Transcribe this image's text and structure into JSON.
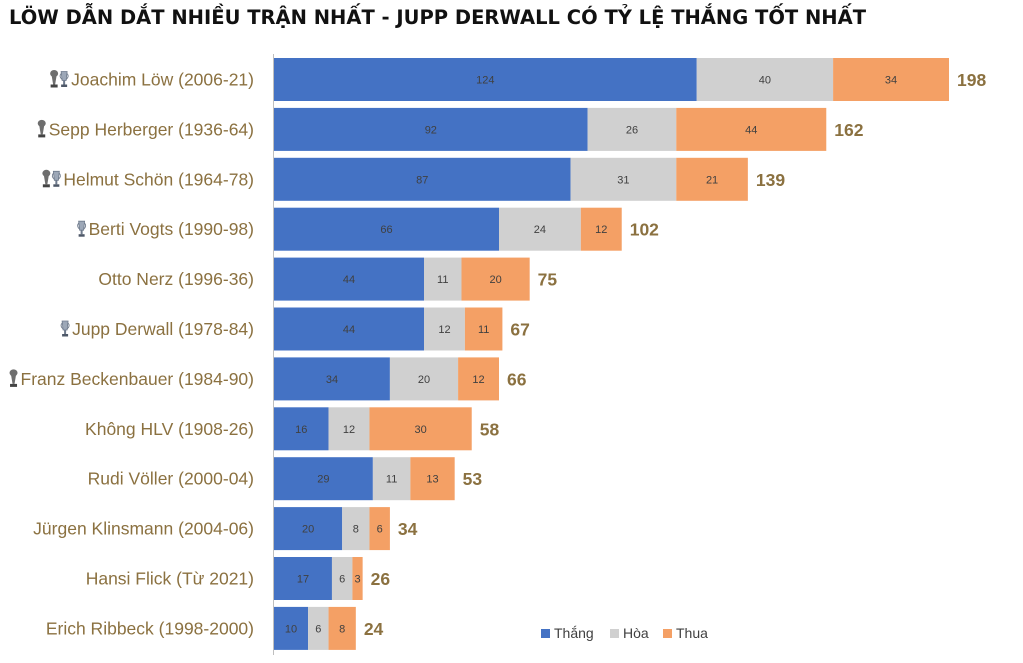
{
  "colors": {
    "win": "#4472C4",
    "draw": "#D0D0D0",
    "loss": "#F4A065",
    "label": "#8B7140",
    "total": "#8B7140",
    "title": "#111111",
    "axis": "#BFBFBF"
  },
  "chart_data": {
    "type": "bar",
    "orientation": "horizontal",
    "stacked": true,
    "title": "LÖW DẪN DẮT NHIỀU TRẬN NHẤT - JUPP DERWALL CÓ TỶ LỆ THẮNG TỐT NHẤT",
    "xlabel": "",
    "ylabel": "",
    "xlim": [
      0,
      200
    ],
    "legend_position": "bottom-right",
    "categories": [
      "Joachim Löw (2006-21)",
      "Sepp Herberger (1936-64)",
      "Helmut Schön (1964-78)",
      "Berti Vogts (1990-98)",
      "Otto Nerz (1996-36)",
      "Jupp Derwall (1978-84)",
      "Franz Beckenbauer (1984-90)",
      "Không HLV (1908-26)",
      "Rudi Völler (2000-04)",
      "Jürgen Klinsmann (2004-06)",
      "Hansi Flick (Từ 2021)",
      "Erich Ribbeck (1998-2000)"
    ],
    "trophy_icons": [
      [
        "world-cup",
        "euro"
      ],
      [
        "world-cup"
      ],
      [
        "world-cup",
        "euro"
      ],
      [
        "euro"
      ],
      [],
      [
        "euro"
      ],
      [
        "world-cup"
      ],
      [],
      [],
      [],
      [],
      []
    ],
    "series": [
      {
        "name": "Thắng",
        "color": "#4472C4",
        "values": [
          124,
          92,
          87,
          66,
          44,
          44,
          34,
          16,
          29,
          20,
          17,
          10
        ]
      },
      {
        "name": "Hòa",
        "color": "#D0D0D0",
        "values": [
          40,
          26,
          31,
          24,
          11,
          12,
          20,
          12,
          11,
          8,
          6,
          6
        ]
      },
      {
        "name": "Thua",
        "color": "#F4A065",
        "values": [
          34,
          44,
          21,
          12,
          20,
          11,
          12,
          30,
          13,
          6,
          3,
          8
        ]
      }
    ],
    "totals": [
      198,
      162,
      139,
      102,
      75,
      67,
      66,
      58,
      53,
      34,
      26,
      24
    ]
  }
}
